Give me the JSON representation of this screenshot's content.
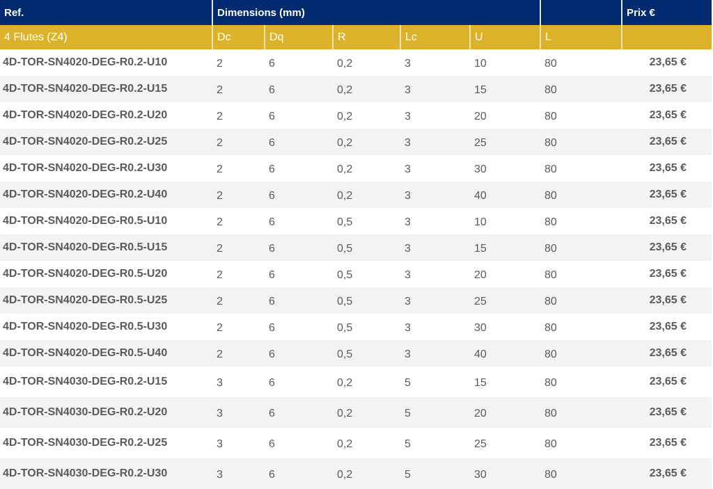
{
  "header": {
    "ref": "Ref.",
    "dimensions": "Dimensions (mm)",
    "price": "Prix €"
  },
  "subheader": {
    "group": "4 Flutes (Z4)",
    "cols": [
      "Dc",
      "Dq",
      "R",
      "Lc",
      "U",
      "L"
    ]
  },
  "rows": [
    [
      "4D-TOR-SN4020-DEG-R0.2-U10",
      "2",
      "6",
      "0,2",
      "3",
      "10",
      "80",
      "23,65 €"
    ],
    [
      "4D-TOR-SN4020-DEG-R0.2-U15",
      "2",
      "6",
      "0,2",
      "3",
      "15",
      "80",
      "23,65 €"
    ],
    [
      "4D-TOR-SN4020-DEG-R0.2-U20",
      "2",
      "6",
      "0,2",
      "3",
      "20",
      "80",
      "23,65 €"
    ],
    [
      "4D-TOR-SN4020-DEG-R0.2-U25",
      "2",
      "6",
      "0,2",
      "3",
      "25",
      "80",
      "23,65 €"
    ],
    [
      "4D-TOR-SN4020-DEG-R0.2-U30",
      "2",
      "6",
      "0,2",
      "3",
      "30",
      "80",
      "23,65 €"
    ],
    [
      "4D-TOR-SN4020-DEG-R0.2-U40",
      "2",
      "6",
      "0,2",
      "3",
      "40",
      "80",
      "23,65 €"
    ],
    [
      "4D-TOR-SN4020-DEG-R0.5-U10",
      "2",
      "6",
      "0,5",
      "3",
      "10",
      "80",
      "23,65 €"
    ],
    [
      "4D-TOR-SN4020-DEG-R0.5-U15",
      "2",
      "6",
      "0,5",
      "3",
      "15",
      "80",
      "23,65 €"
    ],
    [
      "4D-TOR-SN4020-DEG-R0.5-U20",
      "2",
      "6",
      "0,5",
      "3",
      "20",
      "80",
      "23,65 €"
    ],
    [
      "4D-TOR-SN4020-DEG-R0.5-U25",
      "2",
      "6",
      "0,5",
      "3",
      "25",
      "80",
      "23,65 €"
    ],
    [
      "4D-TOR-SN4020-DEG-R0.5-U30",
      "2",
      "6",
      "0,5",
      "3",
      "30",
      "80",
      "23,65 €"
    ],
    [
      "4D-TOR-SN4020-DEG-R0.5-U40",
      "2",
      "6",
      "0,5",
      "3",
      "40",
      "80",
      "23,65 €"
    ],
    [
      "4D-TOR-SN4030-DEG-R0.2-U15",
      "3",
      "6",
      "0,2",
      "5",
      "15",
      "80",
      "23,65 €"
    ],
    [
      "4D-TOR-SN4030-DEG-R0.2-U20",
      "3",
      "6",
      "0,2",
      "5",
      "20",
      "80",
      "23,65 €"
    ],
    [
      "4D-TOR-SN4030-DEG-R0.2-U25",
      "3",
      "6",
      "0,2",
      "5",
      "25",
      "80",
      "23,65 €"
    ],
    [
      "4D-TOR-SN4030-DEG-R0.2-U30",
      "3",
      "6",
      "0,2",
      "5",
      "30",
      "80",
      "23,65 €"
    ]
  ]
}
